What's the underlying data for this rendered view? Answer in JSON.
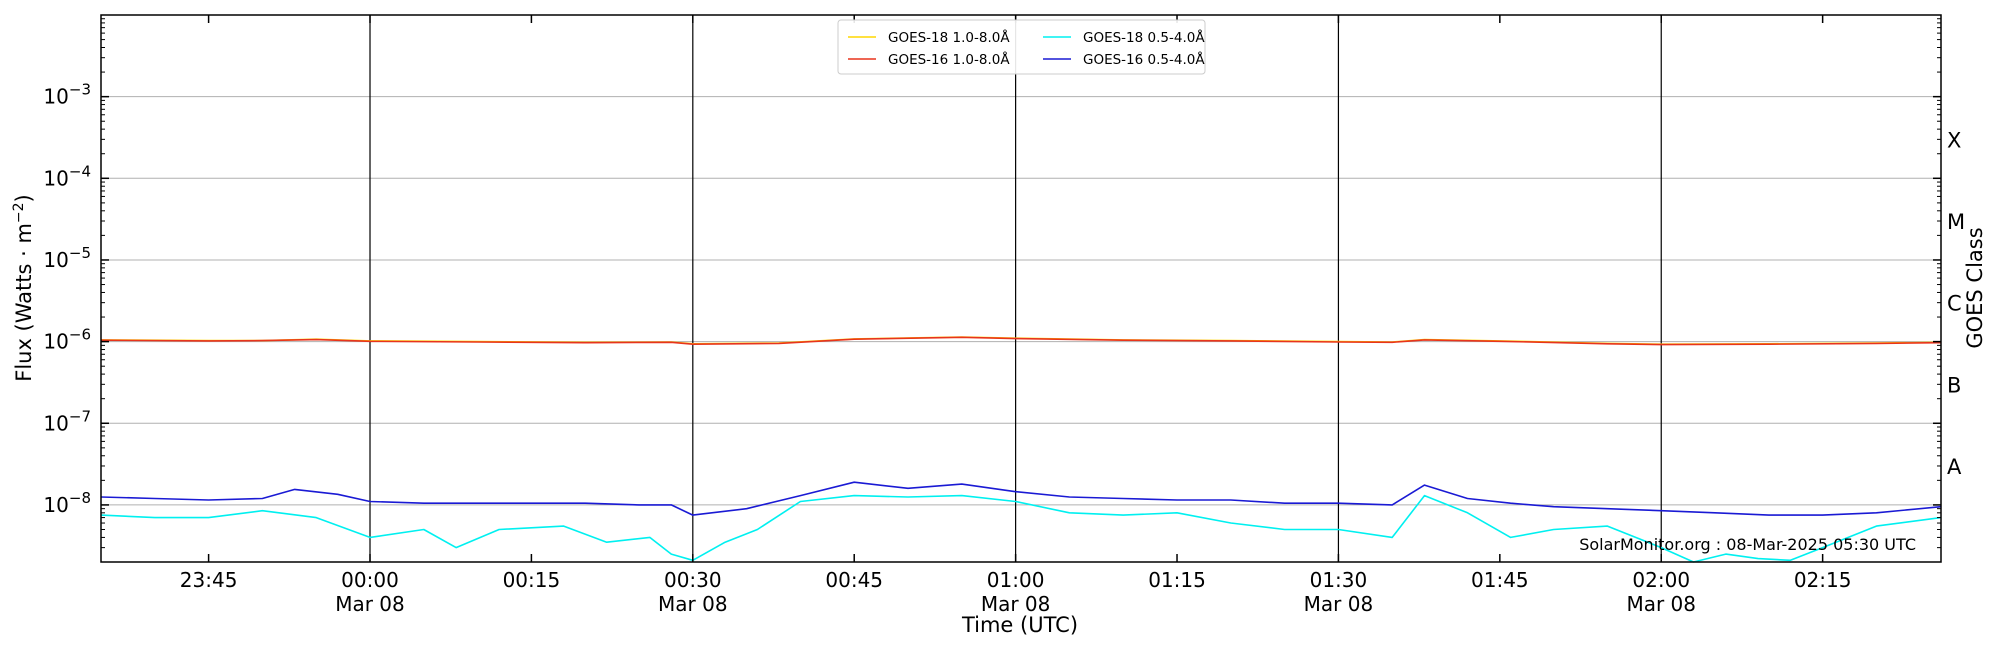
{
  "chart_data": {
    "type": "line",
    "ylabel": "Flux (Watts · m",
    "ylabel_sup": "−2",
    "ylabel_close": ")",
    "xlabel": "Time (UTC)",
    "right_label": "GOES Class",
    "credit": "SolarMonitor.org : 08-Mar-2025 05:30 UTC",
    "y_scale": "log",
    "ylim": [
      2e-09,
      0.01
    ],
    "y_ticks": [
      {
        "value": 1e-08,
        "base": "10",
        "exp": "−8"
      },
      {
        "value": 1e-07,
        "base": "10",
        "exp": "−7"
      },
      {
        "value": 1e-06,
        "base": "10",
        "exp": "−6"
      },
      {
        "value": 1e-05,
        "base": "10",
        "exp": "−5"
      },
      {
        "value": 0.0001,
        "base": "10",
        "exp": "−4"
      },
      {
        "value": 0.001,
        "base": "10",
        "exp": "−3"
      }
    ],
    "xlim": [
      "2025-03-07T23:35",
      "2025-03-08T02:26"
    ],
    "x_ticks": [
      {
        "time": "2025-03-07T23:45",
        "label": "23:45",
        "sublabel": ""
      },
      {
        "time": "2025-03-08T00:00",
        "label": "00:00",
        "sublabel": "Mar 08"
      },
      {
        "time": "2025-03-08T00:15",
        "label": "00:15",
        "sublabel": ""
      },
      {
        "time": "2025-03-08T00:30",
        "label": "00:30",
        "sublabel": "Mar 08"
      },
      {
        "time": "2025-03-08T00:45",
        "label": "00:45",
        "sublabel": ""
      },
      {
        "time": "2025-03-08T01:00",
        "label": "01:00",
        "sublabel": "Mar 08"
      },
      {
        "time": "2025-03-08T01:15",
        "label": "01:15",
        "sublabel": ""
      },
      {
        "time": "2025-03-08T01:30",
        "label": "01:30",
        "sublabel": "Mar 08"
      },
      {
        "time": "2025-03-08T01:45",
        "label": "01:45",
        "sublabel": ""
      },
      {
        "time": "2025-03-08T02:00",
        "label": "02:00",
        "sublabel": "Mar 08"
      },
      {
        "time": "2025-03-08T02:15",
        "label": "02:15",
        "sublabel": ""
      }
    ],
    "vertical_lines": [
      "2025-03-08T00:00",
      "2025-03-08T00:30",
      "2025-03-08T01:00",
      "2025-03-08T01:30",
      "2025-03-08T02:00"
    ],
    "goes_classes": [
      {
        "label": "A",
        "value": 3e-08
      },
      {
        "label": "B",
        "value": 3e-07
      },
      {
        "label": "C",
        "value": 3e-06
      },
      {
        "label": "M",
        "value": 3e-05
      },
      {
        "label": "X",
        "value": 0.0003
      }
    ],
    "grid": true,
    "legend_position": "top-center",
    "series": [
      {
        "name": "GOES-18 1.0-8.0Å",
        "color": "#ffd700",
        "time": [
          "2025-03-07T23:35",
          "2025-03-07T23:45",
          "2025-03-07T23:50",
          "2025-03-07T23:55",
          "2025-03-08T00:00",
          "2025-03-08T00:10",
          "2025-03-08T00:20",
          "2025-03-08T00:28",
          "2025-03-08T00:30",
          "2025-03-08T00:38",
          "2025-03-08T00:45",
          "2025-03-08T00:55",
          "2025-03-08T01:00",
          "2025-03-08T01:10",
          "2025-03-08T01:20",
          "2025-03-08T01:30",
          "2025-03-08T01:35",
          "2025-03-08T01:38",
          "2025-03-08T01:45",
          "2025-03-08T01:55",
          "2025-03-08T02:00",
          "2025-03-08T02:10",
          "2025-03-08T02:20",
          "2025-03-08T02:26"
        ],
        "values": [
          1.05e-06,
          1.03e-06,
          1.03e-06,
          1.07e-06,
          1.02e-06,
          1e-06,
          9.8e-07,
          9.9e-07,
          9.4e-07,
          9.6e-07,
          1.08e-06,
          1.14e-06,
          1.1e-06,
          1.05e-06,
          1.03e-06,
          1e-06,
          9.9e-07,
          1.06e-06,
          1.02e-06,
          9.5e-07,
          9.3e-07,
          9.4e-07,
          9.6e-07,
          9.8e-07
        ]
      },
      {
        "name": "GOES-16 1.0-8.0Å",
        "color": "#e8341c",
        "time": [
          "2025-03-07T23:35",
          "2025-03-07T23:45",
          "2025-03-07T23:50",
          "2025-03-07T23:55",
          "2025-03-08T00:00",
          "2025-03-08T00:10",
          "2025-03-08T00:20",
          "2025-03-08T00:28",
          "2025-03-08T00:30",
          "2025-03-08T00:38",
          "2025-03-08T00:45",
          "2025-03-08T00:55",
          "2025-03-08T01:00",
          "2025-03-08T01:10",
          "2025-03-08T01:20",
          "2025-03-08T01:30",
          "2025-03-08T01:35",
          "2025-03-08T01:38",
          "2025-03-08T01:45",
          "2025-03-08T01:55",
          "2025-03-08T02:00",
          "2025-03-08T02:10",
          "2025-03-08T02:20",
          "2025-03-08T02:26"
        ],
        "values": [
          1.04e-06,
          1.02e-06,
          1.03e-06,
          1.06e-06,
          1.01e-06,
          9.9e-07,
          9.7e-07,
          9.8e-07,
          9.3e-07,
          9.5e-07,
          1.07e-06,
          1.13e-06,
          1.09e-06,
          1.04e-06,
          1.02e-06,
          9.9e-07,
          9.8e-07,
          1.05e-06,
          1.01e-06,
          9.4e-07,
          9.2e-07,
          9.3e-07,
          9.5e-07,
          9.7e-07
        ]
      },
      {
        "name": "GOES-18 0.5-4.0Å",
        "color": "#00f0f0",
        "time": [
          "2025-03-07T23:35",
          "2025-03-07T23:40",
          "2025-03-07T23:45",
          "2025-03-07T23:50",
          "2025-03-07T23:55",
          "2025-03-08T00:00",
          "2025-03-08T00:05",
          "2025-03-08T00:08",
          "2025-03-08T00:12",
          "2025-03-08T00:18",
          "2025-03-08T00:22",
          "2025-03-08T00:26",
          "2025-03-08T00:28",
          "2025-03-08T00:30",
          "2025-03-08T00:33",
          "2025-03-08T00:36",
          "2025-03-08T00:40",
          "2025-03-08T00:45",
          "2025-03-08T00:50",
          "2025-03-08T00:55",
          "2025-03-08T01:00",
          "2025-03-08T01:05",
          "2025-03-08T01:10",
          "2025-03-08T01:15",
          "2025-03-08T01:20",
          "2025-03-08T01:25",
          "2025-03-08T01:30",
          "2025-03-08T01:35",
          "2025-03-08T01:38",
          "2025-03-08T01:42",
          "2025-03-08T01:46",
          "2025-03-08T01:50",
          "2025-03-08T01:55",
          "2025-03-08T02:00",
          "2025-03-08T02:03",
          "2025-03-08T02:06",
          "2025-03-08T02:09",
          "2025-03-08T02:12",
          "2025-03-08T02:15",
          "2025-03-08T02:20",
          "2025-03-08T02:26"
        ],
        "values": [
          7.5e-09,
          7e-09,
          7e-09,
          8.5e-09,
          7e-09,
          4e-09,
          5e-09,
          3e-09,
          5e-09,
          5.5e-09,
          3.5e-09,
          4e-09,
          2.5e-09,
          2.1e-09,
          3.5e-09,
          5e-09,
          1.1e-08,
          1.3e-08,
          1.25e-08,
          1.3e-08,
          1.1e-08,
          8e-09,
          7.5e-09,
          8e-09,
          6e-09,
          5e-09,
          5e-09,
          4e-09,
          1.3e-08,
          8e-09,
          4e-09,
          5e-09,
          5.5e-09,
          3e-09,
          2e-09,
          2.5e-09,
          2.2e-09,
          2.1e-09,
          3e-09,
          5.5e-09,
          7e-09
        ]
      },
      {
        "name": "GOES-16 0.5-4.0Å",
        "color": "#1a1ad4",
        "time": [
          "2025-03-07T23:35",
          "2025-03-07T23:40",
          "2025-03-07T23:45",
          "2025-03-07T23:50",
          "2025-03-07T23:53",
          "2025-03-07T23:57",
          "2025-03-08T00:00",
          "2025-03-08T00:05",
          "2025-03-08T00:10",
          "2025-03-08T00:15",
          "2025-03-08T00:20",
          "2025-03-08T00:25",
          "2025-03-08T00:28",
          "2025-03-08T00:30",
          "2025-03-08T00:35",
          "2025-03-08T00:40",
          "2025-03-08T00:45",
          "2025-03-08T00:50",
          "2025-03-08T00:55",
          "2025-03-08T01:00",
          "2025-03-08T01:05",
          "2025-03-08T01:10",
          "2025-03-08T01:15",
          "2025-03-08T01:20",
          "2025-03-08T01:25",
          "2025-03-08T01:30",
          "2025-03-08T01:35",
          "2025-03-08T01:38",
          "2025-03-08T01:42",
          "2025-03-08T01:46",
          "2025-03-08T01:50",
          "2025-03-08T01:55",
          "2025-03-08T02:00",
          "2025-03-08T02:05",
          "2025-03-08T02:10",
          "2025-03-08T02:15",
          "2025-03-08T02:20",
          "2025-03-08T02:26"
        ],
        "values": [
          1.25e-08,
          1.2e-08,
          1.15e-08,
          1.2e-08,
          1.55e-08,
          1.35e-08,
          1.1e-08,
          1.05e-08,
          1.05e-08,
          1.05e-08,
          1.05e-08,
          1e-08,
          1e-08,
          7.5e-09,
          9e-09,
          1.3e-08,
          1.9e-08,
          1.6e-08,
          1.8e-08,
          1.45e-08,
          1.25e-08,
          1.2e-08,
          1.15e-08,
          1.15e-08,
          1.05e-08,
          1.05e-08,
          1e-08,
          1.75e-08,
          1.2e-08,
          1.05e-08,
          9.5e-09,
          9e-09,
          8.5e-09,
          8e-09,
          7.5e-09,
          7.5e-09,
          8e-09,
          9.5e-09
        ]
      }
    ]
  }
}
